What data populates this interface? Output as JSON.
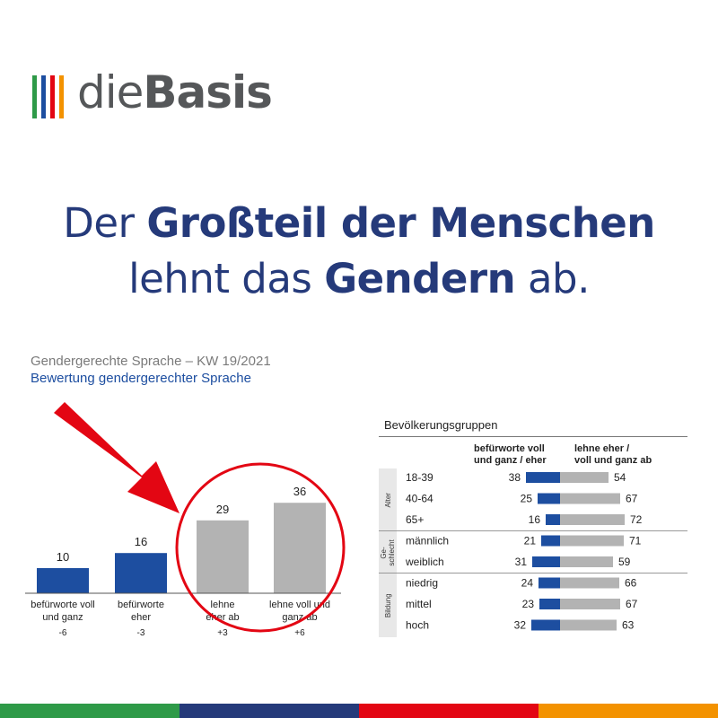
{
  "logo": {
    "bar_colors": [
      "#2e9a48",
      "#1d4ea0",
      "#e30613",
      "#f39200"
    ],
    "text_light": "die",
    "text_bold": "Basis"
  },
  "headline": {
    "line1_normal": "Der ",
    "line1_bold": "Großteil der Menschen",
    "line2_normal_a": "lehnt das ",
    "line2_bold": "Gendern",
    "line2_normal_b": " ab."
  },
  "chart_header": {
    "title": "Gendergerechte Sprache – KW 19/2021",
    "subtitle": "Bewertung gendergerechter Sprache"
  },
  "chart_data": [
    {
      "type": "bar",
      "categories": [
        "befürworte voll und ganz",
        "befürworte eher",
        "lehne eher ab",
        "lehne voll und ganz ab"
      ],
      "category_lines": [
        [
          "befürworte voll",
          "und ganz"
        ],
        [
          "befürworte",
          "eher"
        ],
        [
          "lehne",
          "eher ab"
        ],
        [
          "lehne voll und",
          "ganz ab"
        ]
      ],
      "values": [
        10,
        16,
        29,
        36
      ],
      "scale_labels": [
        "-6",
        "-3",
        "+3",
        "+6"
      ],
      "colors": [
        "#1d4ea0",
        "#1d4ea0",
        "#b3b3b3",
        "#b3b3b3"
      ],
      "annotations": [
        "red arrow pointing to rejection bars",
        "red circle around rejection bars"
      ],
      "highlight_color": "#e30613"
    },
    {
      "type": "bar",
      "title": "Bevölkerungsgruppen",
      "column_headers": [
        [
          "befürworte voll",
          "und ganz / eher"
        ],
        [
          "lehne eher /",
          "voll und ganz ab"
        ]
      ],
      "groups": [
        {
          "name": "Alter",
          "name_lines": [
            "Alter"
          ],
          "rows": [
            {
              "label": "18-39",
              "support": 38,
              "reject": 54
            },
            {
              "label": "40-64",
              "support": 25,
              "reject": 67
            },
            {
              "label": "65+",
              "support": 16,
              "reject": 72
            }
          ]
        },
        {
          "name": "Geschlecht",
          "name_lines": [
            "Ge-",
            "schlecht"
          ],
          "rows": [
            {
              "label": "männlich",
              "support": 21,
              "reject": 71
            },
            {
              "label": "weiblich",
              "support": 31,
              "reject": 59
            }
          ]
        },
        {
          "name": "Bildung",
          "name_lines": [
            "Bildung"
          ],
          "rows": [
            {
              "label": "niedrig",
              "support": 24,
              "reject": 66
            },
            {
              "label": "mittel",
              "support": 23,
              "reject": 67
            },
            {
              "label": "hoch",
              "support": 32,
              "reject": 63
            }
          ]
        }
      ],
      "colors": {
        "support": "#1d4ea0",
        "reject": "#b3b3b3"
      }
    }
  ],
  "stripe_colors": [
    "#2e9a48",
    "#253a7a",
    "#e30613",
    "#f39200"
  ]
}
